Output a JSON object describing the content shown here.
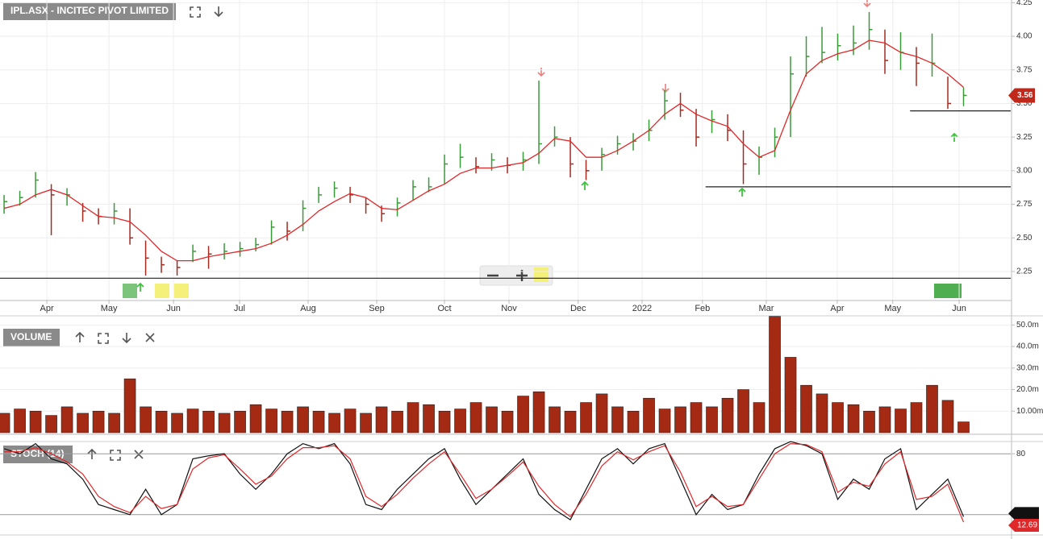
{
  "chart_data": [
    {
      "type": "ohlc",
      "title": "IPL.ASX - INCITEC PIVOT LIMITED",
      "xlim": [
        -0.26,
        64.0
      ],
      "xticks": [
        {
          "value": 2.72,
          "label": "Apr"
        },
        {
          "value": 6.67,
          "label": "May"
        },
        {
          "value": 10.77,
          "label": "Jun"
        },
        {
          "value": 14.97,
          "label": "Jul"
        },
        {
          "value": 19.33,
          "label": "Aug"
        },
        {
          "value": 23.69,
          "label": "Sep"
        },
        {
          "value": 28.0,
          "label": "Oct"
        },
        {
          "value": 32.1,
          "label": "Nov"
        },
        {
          "value": 36.5,
          "label": "Dec"
        },
        {
          "value": 40.56,
          "label": "2022"
        },
        {
          "value": 44.4,
          "label": "Feb"
        },
        {
          "value": 48.46,
          "label": "Mar"
        },
        {
          "value": 52.97,
          "label": "Apr"
        },
        {
          "value": 56.5,
          "label": "May"
        },
        {
          "value": 60.72,
          "label": "Jun"
        }
      ],
      "ylim": [
        2.04,
        4.27
      ],
      "yticks": [
        {
          "value": 2.25,
          "label": "2.25"
        },
        {
          "value": 2.5,
          "label": "2.50"
        },
        {
          "value": 2.75,
          "label": "2.75"
        },
        {
          "value": 3.0,
          "label": "3.00"
        },
        {
          "value": 3.25,
          "label": "3.25"
        },
        {
          "value": 3.5,
          "label": "3.50"
        },
        {
          "value": 3.75,
          "label": "3.75"
        },
        {
          "value": 4.0,
          "label": "4.00"
        },
        {
          "value": 4.25,
          "label": "4.25"
        }
      ],
      "grid": true,
      "up_color": "#3a9a3a",
      "down_color": "#a52a20",
      "ma_color": "#e0282a",
      "high": [
        2.82,
        2.85,
        2.99,
        2.9,
        2.87,
        2.76,
        2.72,
        2.76,
        2.72,
        2.48,
        2.36,
        2.33,
        2.45,
        2.44,
        2.46,
        2.47,
        2.5,
        2.63,
        2.62,
        2.78,
        2.88,
        2.92,
        2.88,
        2.8,
        2.74,
        2.8,
        2.93,
        2.95,
        3.12,
        3.2,
        3.1,
        3.13,
        3.1,
        3.14,
        3.67,
        3.33,
        3.25,
        3.08,
        3.17,
        3.26,
        3.28,
        3.38,
        3.6,
        3.58,
        3.46,
        3.45,
        3.42,
        3.3,
        3.18,
        3.32,
        3.85,
        4.0,
        4.07,
        4.02,
        4.08,
        4.18,
        4.05,
        4.03,
        3.92,
        4.02,
        3.7,
        3.62
      ],
      "low": [
        2.68,
        2.74,
        2.8,
        2.52,
        2.74,
        2.62,
        2.6,
        2.6,
        2.45,
        2.22,
        2.24,
        2.22,
        2.32,
        2.27,
        2.34,
        2.36,
        2.4,
        2.45,
        2.48,
        2.55,
        2.76,
        2.8,
        2.76,
        2.68,
        2.62,
        2.66,
        2.78,
        2.84,
        2.9,
        3.02,
        2.98,
        3.0,
        2.98,
        3.0,
        3.05,
        3.18,
        2.95,
        2.93,
        3.0,
        3.12,
        3.15,
        3.22,
        3.38,
        3.4,
        3.18,
        3.28,
        3.22,
        2.9,
        2.97,
        3.1,
        3.25,
        3.7,
        3.8,
        3.82,
        3.86,
        3.9,
        3.72,
        3.75,
        3.63,
        3.7,
        3.46,
        3.48
      ],
      "close": [
        2.77,
        2.8,
        2.93,
        2.82,
        2.82,
        2.7,
        2.66,
        2.7,
        2.5,
        2.35,
        2.3,
        2.28,
        2.4,
        2.38,
        2.4,
        2.42,
        2.45,
        2.58,
        2.55,
        2.72,
        2.82,
        2.87,
        2.82,
        2.75,
        2.68,
        2.76,
        2.88,
        2.88,
        3.05,
        3.1,
        3.03,
        3.08,
        3.04,
        3.08,
        3.2,
        3.25,
        3.05,
        3.0,
        3.12,
        3.2,
        3.22,
        3.3,
        3.52,
        3.45,
        3.25,
        3.38,
        3.3,
        3.05,
        3.1,
        3.25,
        3.72,
        3.85,
        3.88,
        3.93,
        3.95,
        4.05,
        3.82,
        3.88,
        3.8,
        3.8,
        3.5,
        3.56
      ],
      "ma": [
        2.72,
        2.75,
        2.82,
        2.86,
        2.82,
        2.74,
        2.66,
        2.65,
        2.62,
        2.52,
        2.4,
        2.33,
        2.33,
        2.36,
        2.38,
        2.4,
        2.42,
        2.46,
        2.52,
        2.6,
        2.7,
        2.77,
        2.83,
        2.8,
        2.72,
        2.71,
        2.78,
        2.85,
        2.9,
        2.98,
        3.02,
        3.02,
        3.04,
        3.06,
        3.13,
        3.24,
        3.22,
        3.1,
        3.1,
        3.15,
        3.22,
        3.3,
        3.42,
        3.5,
        3.42,
        3.37,
        3.33,
        3.2,
        3.1,
        3.15,
        3.45,
        3.72,
        3.82,
        3.87,
        3.9,
        3.97,
        3.95,
        3.88,
        3.85,
        3.8,
        3.72,
        3.62
      ],
      "levels": [
        {
          "value": 2.2,
          "from": -0.26
        },
        {
          "value": 2.88,
          "from": 44.6
        },
        {
          "value": 3.445,
          "from": 57.6
        }
      ]
    },
    {
      "type": "bar",
      "title": "VOLUME",
      "color": "#a52a14",
      "xlim": [
        -0.26,
        64.0
      ],
      "ylim": [
        0,
        55
      ],
      "yticks": [
        {
          "value": 10,
          "label": "10.00m"
        },
        {
          "value": 20,
          "label": "20.0m"
        },
        {
          "value": 30,
          "label": "30.0m"
        },
        {
          "value": 40,
          "label": "40.0m"
        },
        {
          "value": 50,
          "label": "50.0m"
        }
      ],
      "values": [
        9,
        11,
        10,
        8,
        12,
        9,
        10,
        9,
        25,
        12,
        10,
        9,
        11,
        10,
        9,
        10,
        13,
        11,
        10,
        12,
        10,
        9,
        11,
        9,
        12,
        10,
        14,
        13,
        10,
        11,
        14,
        12,
        10,
        17,
        19,
        12,
        10,
        14,
        18,
        12,
        10,
        16,
        11,
        12,
        14,
        12,
        16,
        20,
        14,
        54,
        35,
        22,
        18,
        14,
        13,
        10,
        12,
        11,
        14,
        22,
        15,
        5
      ]
    },
    {
      "type": "line",
      "title": "STOCH (14)",
      "xlim": [
        -0.26,
        64.0
      ],
      "ylim": [
        0,
        100
      ],
      "yticks": [
        20,
        80
      ],
      "series": [
        {
          "color": "#111111",
          "values": [
            85,
            80,
            90,
            75,
            70,
            55,
            30,
            25,
            20,
            45,
            20,
            30,
            75,
            78,
            80,
            60,
            45,
            60,
            80,
            90,
            85,
            90,
            70,
            30,
            25,
            45,
            60,
            75,
            85,
            55,
            30,
            45,
            60,
            75,
            40,
            25,
            15,
            45,
            75,
            85,
            70,
            85,
            90,
            55,
            20,
            40,
            25,
            30,
            60,
            85,
            92,
            88,
            80,
            35,
            55,
            45,
            75,
            85,
            25,
            40,
            55,
            18
          ]
        },
        {
          "color": "#e0282a",
          "values": [
            82,
            82,
            86,
            80,
            72,
            60,
            38,
            28,
            22,
            38,
            26,
            30,
            65,
            76,
            79,
            65,
            50,
            58,
            75,
            86,
            86,
            88,
            75,
            38,
            28,
            40,
            56,
            70,
            82,
            60,
            36,
            45,
            58,
            72,
            48,
            30,
            18,
            40,
            68,
            82,
            74,
            82,
            88,
            62,
            28,
            38,
            28,
            30,
            55,
            80,
            90,
            89,
            82,
            42,
            52,
            48,
            70,
            82,
            35,
            38,
            50,
            12.69
          ]
        }
      ]
    }
  ]
}
